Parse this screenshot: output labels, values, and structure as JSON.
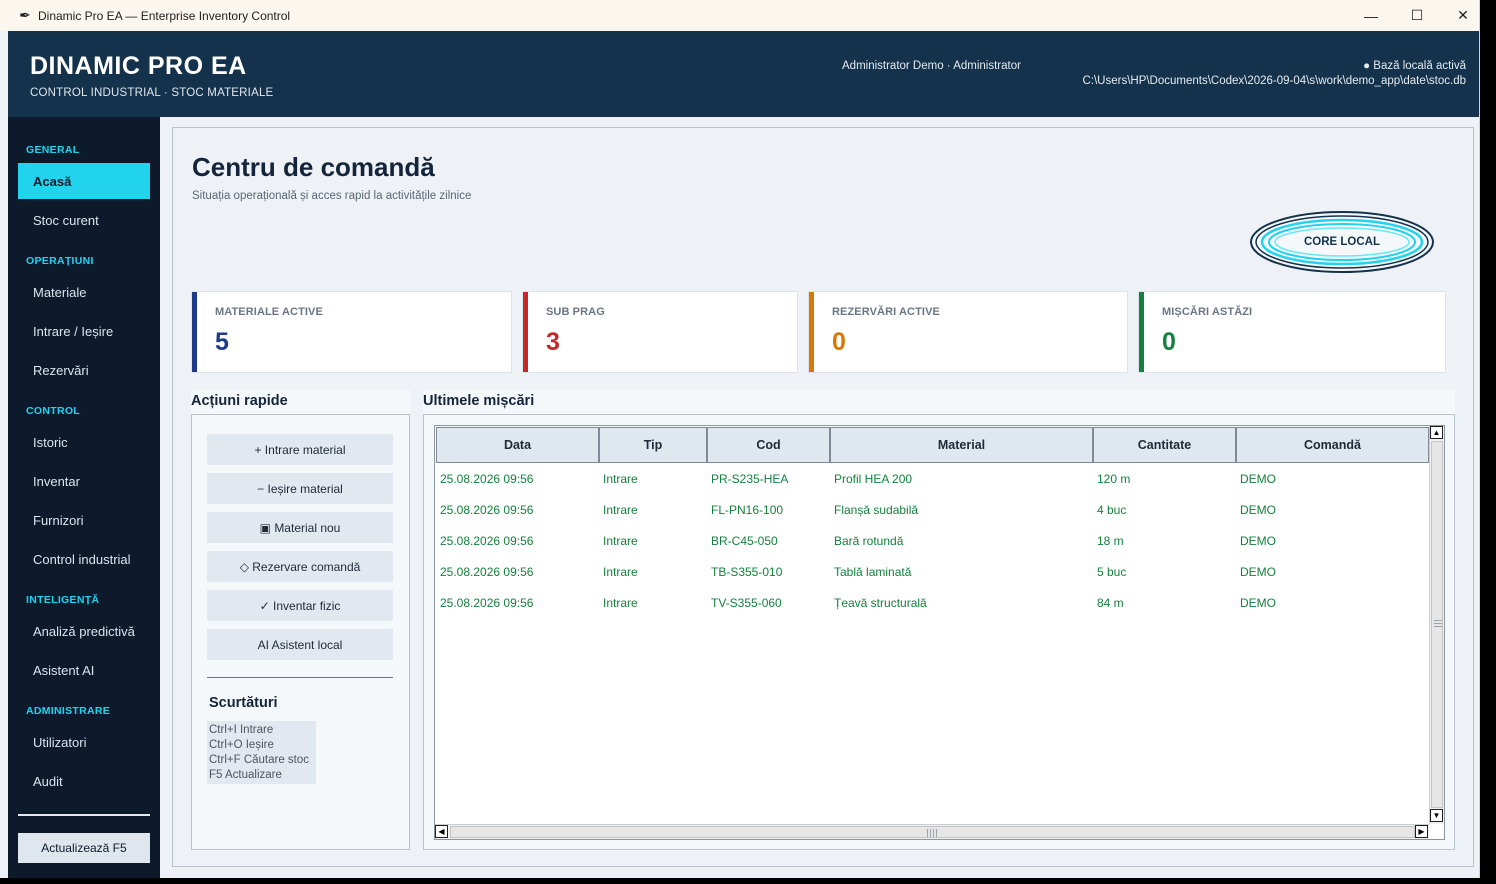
{
  "window": {
    "title": "Dinamic Pro EA — Enterprise Inventory Control",
    "app_icon": "feather-icon",
    "controls": {
      "minimize": "—",
      "maximize": "☐",
      "close": "✕"
    }
  },
  "header": {
    "brand": "DINAMIC PRO EA",
    "subtitle": "CONTROL INDUSTRIAL · STOC MATERIALE",
    "user": "Administrator Demo · Administrator",
    "db_status": "● Bază locală activă",
    "db_path": "C:\\Users\\HP\\Documents\\Codex\\2026-09-04\\s\\work\\demo_app\\date\\stoc.db"
  },
  "sidebar": {
    "sections": [
      {
        "title": "GENERAL",
        "items": [
          "Acasă",
          "Stoc curent"
        ]
      },
      {
        "title": "OPERAȚIUNI",
        "items": [
          "Materiale",
          "Intrare / Ieșire",
          "Rezervări"
        ]
      },
      {
        "title": "CONTROL",
        "items": [
          "Istoric",
          "Inventar",
          "Furnizori",
          "Control industrial"
        ]
      },
      {
        "title": "INTELIGENȚĂ",
        "items": [
          "Analiză predictivă",
          "Asistent AI"
        ]
      },
      {
        "title": "ADMINISTRARE",
        "items": [
          "Utilizatori",
          "Audit"
        ]
      }
    ],
    "active_item": "Acasă",
    "refresh_button": "Actualizează  F5"
  },
  "main": {
    "title": "Centru de comandă",
    "subtitle": "Situația operațională și acces rapid la activitățile zilnice",
    "badge": "CORE LOCAL"
  },
  "kpis": [
    {
      "label": "MATERIALE ACTIVE",
      "value": "5",
      "color": "#1e3a8a"
    },
    {
      "label": "SUB PRAG",
      "value": "3",
      "color": "#c62828"
    },
    {
      "label": "REZERVĂRI ACTIVE",
      "value": "0",
      "color": "#d97706"
    },
    {
      "label": "MIȘCĂRI ASTĂZI",
      "value": "0",
      "color": "#15803d"
    }
  ],
  "quick_actions": {
    "title": "Acțiuni rapide",
    "buttons": [
      "+  Intrare material",
      "−  Ieșire material",
      "▣  Material nou",
      "◇  Rezervare comandă",
      "✓  Inventar fizic",
      "AI  Asistent local"
    ],
    "shortcuts_title": "Scurtături",
    "shortcuts": [
      "Ctrl+I  Intrare",
      "Ctrl+O  Ieșire",
      "Ctrl+F  Căutare stoc",
      "F5  Actualizare"
    ]
  },
  "movements": {
    "title": "Ultimele mișcări",
    "columns": [
      "Data",
      "Tip",
      "Cod",
      "Material",
      "Cantitate",
      "Comandă"
    ],
    "rows": [
      [
        "25.08.2026 09:56",
        "Intrare",
        "PR-S235-HEA",
        "Profil HEA 200",
        "120 m",
        "DEMO"
      ],
      [
        "25.08.2026 09:56",
        "Intrare",
        "FL-PN16-100",
        "Flanșă sudabilă",
        "4 buc",
        "DEMO"
      ],
      [
        "25.08.2026 09:56",
        "Intrare",
        "BR-C45-050",
        "Bară rotundă",
        "18 m",
        "DEMO"
      ],
      [
        "25.08.2026 09:56",
        "Intrare",
        "TB-S355-010",
        "Tablă laminată",
        "5 buc",
        "DEMO"
      ],
      [
        "25.08.2026 09:56",
        "Intrare",
        "TV-S355-060",
        "Țeavă structurală",
        "84 m",
        "DEMO"
      ]
    ],
    "row_color": "#15803d",
    "scroll_arrows": {
      "up": "▲",
      "down": "▼",
      "left": "◀",
      "right": "▶"
    }
  },
  "colors": {
    "header_bg": "#14324b",
    "sidebar_bg": "#0c1a2c",
    "accent": "#22d3ee"
  }
}
